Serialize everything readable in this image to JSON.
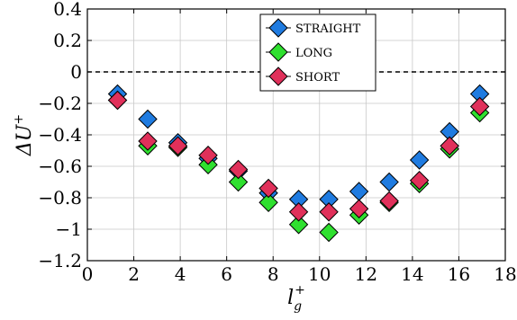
{
  "chart_data": {
    "type": "scatter",
    "xlabel": "l_g^+",
    "ylabel": "ΔU^+",
    "xlim": [
      0,
      18
    ],
    "ylim": [
      -1.2,
      0.4
    ],
    "xticks": [
      0,
      2,
      4,
      6,
      8,
      10,
      12,
      14,
      16,
      18
    ],
    "xtick_labels": [
      "0",
      "2",
      "4",
      "6",
      "8",
      "10",
      "12",
      "14",
      "16",
      "18"
    ],
    "yticks": [
      -1.2,
      -1.0,
      -0.8,
      -0.6,
      -0.4,
      -0.2,
      0,
      0.2,
      0.4
    ],
    "ytick_labels": [
      "−1.2",
      "−1",
      "−0.8",
      "−0.6",
      "−0.4",
      "−0.2",
      "0",
      "0.2",
      "0.4"
    ],
    "grid": true,
    "legend_position": "top-center",
    "reference_line": {
      "y": 0,
      "style": "dashed"
    },
    "series": [
      {
        "name": "STRAIGHT",
        "color": "#1f7be0",
        "x": [
          1.3,
          2.6,
          3.9,
          5.2,
          6.5,
          7.8,
          9.1,
          10.4,
          11.7,
          13.0,
          14.3,
          15.6,
          16.9
        ],
        "y": [
          -0.14,
          -0.3,
          -0.45,
          -0.55,
          -0.63,
          -0.77,
          -0.81,
          -0.81,
          -0.76,
          -0.7,
          -0.56,
          -0.38,
          -0.14
        ]
      },
      {
        "name": "LONG",
        "color": "#2fe02f",
        "x": [
          1.3,
          2.6,
          3.9,
          5.2,
          6.5,
          7.8,
          9.1,
          10.4,
          11.7,
          13.0,
          14.3,
          15.6,
          16.9
        ],
        "y": [
          -0.18,
          -0.47,
          -0.48,
          -0.59,
          -0.7,
          -0.83,
          -0.97,
          -1.02,
          -0.91,
          -0.83,
          -0.71,
          -0.49,
          -0.26
        ]
      },
      {
        "name": "SHORT",
        "color": "#e0305a",
        "x": [
          1.3,
          2.6,
          3.9,
          5.2,
          6.5,
          7.8,
          9.1,
          10.4,
          11.7,
          13.0,
          14.3,
          15.6,
          16.9
        ],
        "y": [
          -0.18,
          -0.44,
          -0.47,
          -0.53,
          -0.62,
          -0.74,
          -0.89,
          -0.89,
          -0.87,
          -0.82,
          -0.69,
          -0.47,
          -0.22
        ]
      }
    ]
  }
}
